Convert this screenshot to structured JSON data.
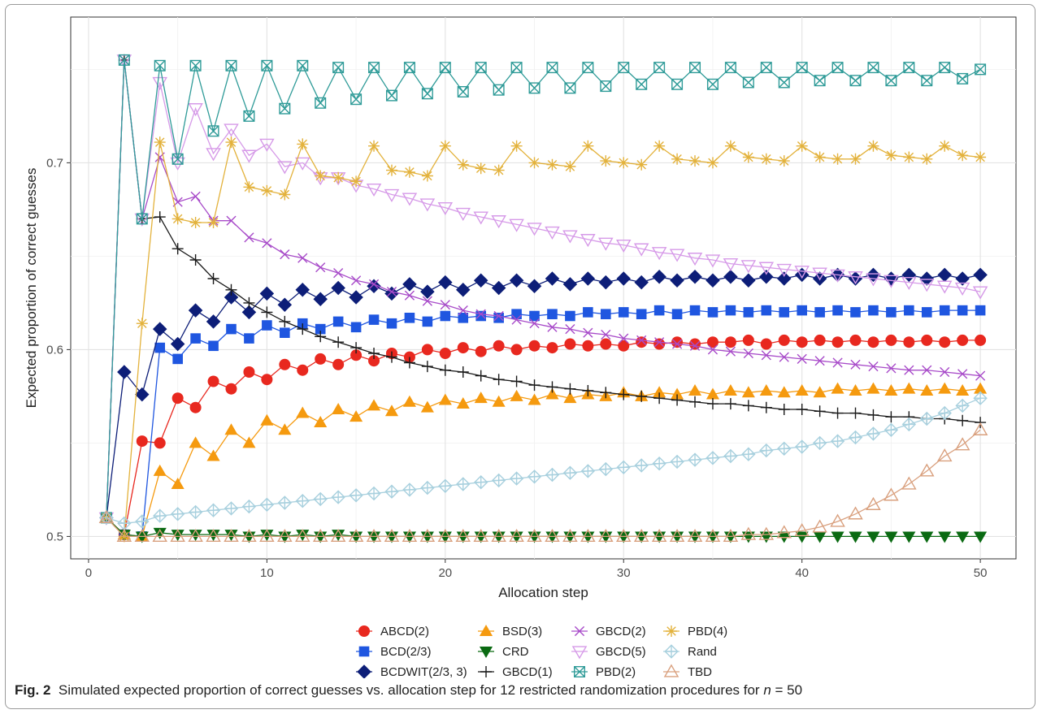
{
  "caption": {
    "label": "Fig. 2",
    "text": "Simulated expected proportion of correct guesses vs. allocation step for 12 restricted randomization procedures for ",
    "var": "n",
    "eq": " = 50"
  },
  "chart_data": {
    "type": "line",
    "xlabel": "Allocation step",
    "ylabel": "Expected proportion of correct guesses",
    "xlim": [
      -1,
      52
    ],
    "ylim": [
      0.488,
      0.778
    ],
    "xticks": [
      0,
      10,
      20,
      30,
      40,
      50
    ],
    "yticks": [
      0.5,
      0.6,
      0.7
    ],
    "ytick_labels": [
      "0.5",
      "0.6",
      "0.7"
    ],
    "grid": true,
    "legend_position": "bottom",
    "x": [
      1,
      2,
      3,
      4,
      5,
      6,
      7,
      8,
      9,
      10,
      11,
      12,
      13,
      14,
      15,
      16,
      17,
      18,
      19,
      20,
      21,
      22,
      23,
      24,
      25,
      26,
      27,
      28,
      29,
      30,
      31,
      32,
      33,
      34,
      35,
      36,
      37,
      38,
      39,
      40,
      41,
      42,
      43,
      44,
      45,
      46,
      47,
      48,
      49,
      50
    ],
    "series": [
      {
        "name": "ABCD(2)",
        "color": "#e8281f",
        "marker": "circle",
        "values": [
          0.51,
          0.501,
          0.551,
          0.55,
          0.574,
          0.569,
          0.583,
          0.579,
          0.588,
          0.584,
          0.592,
          0.589,
          0.595,
          0.592,
          0.597,
          0.594,
          0.598,
          0.596,
          0.6,
          0.598,
          0.601,
          0.599,
          0.602,
          0.6,
          0.602,
          0.601,
          0.603,
          0.602,
          0.603,
          0.602,
          0.604,
          0.603,
          0.604,
          0.603,
          0.604,
          0.604,
          0.605,
          0.603,
          0.605,
          0.604,
          0.605,
          0.604,
          0.605,
          0.604,
          0.605,
          0.604,
          0.605,
          0.604,
          0.605,
          0.605
        ]
      },
      {
        "name": "BCD(2/3)",
        "color": "#1f56e0",
        "marker": "square",
        "values": [
          0.51,
          0.501,
          0.5,
          0.601,
          0.595,
          0.606,
          0.602,
          0.611,
          0.606,
          0.613,
          0.609,
          0.614,
          0.611,
          0.615,
          0.612,
          0.616,
          0.614,
          0.617,
          0.615,
          0.618,
          0.617,
          0.618,
          0.617,
          0.619,
          0.618,
          0.619,
          0.618,
          0.62,
          0.619,
          0.62,
          0.619,
          0.621,
          0.619,
          0.621,
          0.62,
          0.621,
          0.62,
          0.621,
          0.62,
          0.621,
          0.62,
          0.621,
          0.62,
          0.621,
          0.62,
          0.621,
          0.62,
          0.621,
          0.621,
          0.621
        ]
      },
      {
        "name": "BCDWIT(2/3, 3)",
        "color": "#0d1e78",
        "marker": "diamond",
        "values": [
          0.51,
          0.588,
          0.576,
          0.611,
          0.603,
          0.621,
          0.615,
          0.628,
          0.62,
          0.63,
          0.624,
          0.632,
          0.627,
          0.633,
          0.628,
          0.634,
          0.63,
          0.635,
          0.631,
          0.636,
          0.632,
          0.637,
          0.633,
          0.637,
          0.634,
          0.638,
          0.635,
          0.638,
          0.636,
          0.638,
          0.636,
          0.639,
          0.637,
          0.639,
          0.637,
          0.639,
          0.637,
          0.639,
          0.638,
          0.64,
          0.638,
          0.64,
          0.638,
          0.64,
          0.638,
          0.64,
          0.638,
          0.64,
          0.638,
          0.64
        ]
      },
      {
        "name": "BSD(3)",
        "color": "#f59a0f",
        "marker": "triangle-up",
        "values": [
          0.51,
          0.501,
          0.5,
          0.535,
          0.528,
          0.55,
          0.543,
          0.557,
          0.55,
          0.562,
          0.557,
          0.566,
          0.561,
          0.568,
          0.564,
          0.57,
          0.567,
          0.572,
          0.569,
          0.573,
          0.571,
          0.574,
          0.572,
          0.575,
          0.573,
          0.576,
          0.574,
          0.576,
          0.575,
          0.577,
          0.575,
          0.577,
          0.576,
          0.578,
          0.576,
          0.578,
          0.577,
          0.578,
          0.577,
          0.578,
          0.577,
          0.579,
          0.578,
          0.579,
          0.578,
          0.579,
          0.578,
          0.579,
          0.578,
          0.579
        ]
      },
      {
        "name": "CRD",
        "color": "#0a6a12",
        "marker": "triangle-down",
        "values": [
          0.51,
          0.501,
          0.5,
          0.502,
          0.501,
          0.501,
          0.501,
          0.501,
          0.5,
          0.501,
          0.5,
          0.501,
          0.5,
          0.501,
          0.5,
          0.5,
          0.5,
          0.5,
          0.5,
          0.5,
          0.5,
          0.5,
          0.5,
          0.5,
          0.5,
          0.5,
          0.5,
          0.5,
          0.5,
          0.5,
          0.5,
          0.5,
          0.5,
          0.5,
          0.5,
          0.5,
          0.5,
          0.5,
          0.5,
          0.5,
          0.5,
          0.5,
          0.5,
          0.5,
          0.5,
          0.5,
          0.5,
          0.5,
          0.5,
          0.5
        ]
      },
      {
        "name": "GBCD(1)",
        "color": "#1a1a1a",
        "marker": "plus",
        "values": [
          0.51,
          0.755,
          0.67,
          0.671,
          0.654,
          0.648,
          0.638,
          0.632,
          0.625,
          0.62,
          0.615,
          0.611,
          0.607,
          0.604,
          0.601,
          0.598,
          0.596,
          0.593,
          0.591,
          0.589,
          0.588,
          0.586,
          0.584,
          0.583,
          0.581,
          0.58,
          0.579,
          0.578,
          0.577,
          0.576,
          0.575,
          0.574,
          0.573,
          0.572,
          0.571,
          0.571,
          0.57,
          0.569,
          0.568,
          0.568,
          0.567,
          0.566,
          0.566,
          0.565,
          0.564,
          0.564,
          0.563,
          0.563,
          0.562,
          0.561
        ]
      },
      {
        "name": "GBCD(2)",
        "color": "#a84bc9",
        "marker": "x",
        "values": [
          0.51,
          0.755,
          0.67,
          0.703,
          0.679,
          0.682,
          0.669,
          0.669,
          0.66,
          0.657,
          0.651,
          0.649,
          0.644,
          0.641,
          0.637,
          0.635,
          0.631,
          0.629,
          0.626,
          0.624,
          0.621,
          0.619,
          0.618,
          0.616,
          0.614,
          0.612,
          0.611,
          0.609,
          0.608,
          0.606,
          0.605,
          0.604,
          0.603,
          0.602,
          0.6,
          0.599,
          0.598,
          0.597,
          0.596,
          0.595,
          0.594,
          0.593,
          0.592,
          0.591,
          0.59,
          0.589,
          0.589,
          0.588,
          0.587,
          0.586
        ]
      },
      {
        "name": "GBCD(5)",
        "color": "#d69ae8",
        "marker": "triangle-down-open",
        "values": [
          0.51,
          0.755,
          0.67,
          0.743,
          0.7,
          0.729,
          0.705,
          0.718,
          0.704,
          0.71,
          0.698,
          0.7,
          0.692,
          0.692,
          0.688,
          0.686,
          0.683,
          0.681,
          0.678,
          0.676,
          0.673,
          0.671,
          0.669,
          0.667,
          0.665,
          0.663,
          0.661,
          0.659,
          0.657,
          0.656,
          0.654,
          0.652,
          0.651,
          0.649,
          0.648,
          0.646,
          0.645,
          0.644,
          0.643,
          0.642,
          0.641,
          0.64,
          0.639,
          0.638,
          0.637,
          0.636,
          0.635,
          0.634,
          0.633,
          0.631
        ]
      },
      {
        "name": "PBD(2)",
        "color": "#2f9b98",
        "marker": "square-x",
        "values": [
          0.51,
          0.755,
          0.67,
          0.752,
          0.702,
          0.752,
          0.717,
          0.752,
          0.725,
          0.752,
          0.729,
          0.752,
          0.732,
          0.751,
          0.734,
          0.751,
          0.736,
          0.751,
          0.737,
          0.751,
          0.738,
          0.751,
          0.739,
          0.751,
          0.74,
          0.751,
          0.74,
          0.751,
          0.741,
          0.751,
          0.742,
          0.751,
          0.742,
          0.751,
          0.742,
          0.751,
          0.743,
          0.751,
          0.743,
          0.751,
          0.744,
          0.751,
          0.744,
          0.751,
          0.744,
          0.751,
          0.744,
          0.751,
          0.745,
          0.75
        ]
      },
      {
        "name": "PBD(4)",
        "color": "#e3b23c",
        "marker": "asterisk",
        "values": [
          0.51,
          0.5,
          0.614,
          0.711,
          0.67,
          0.668,
          0.668,
          0.711,
          0.687,
          0.685,
          0.683,
          0.71,
          0.693,
          0.692,
          0.69,
          0.709,
          0.696,
          0.695,
          0.693,
          0.709,
          0.699,
          0.697,
          0.696,
          0.709,
          0.7,
          0.699,
          0.698,
          0.709,
          0.701,
          0.7,
          0.699,
          0.709,
          0.702,
          0.701,
          0.7,
          0.709,
          0.703,
          0.702,
          0.701,
          0.709,
          0.703,
          0.702,
          0.702,
          0.709,
          0.704,
          0.703,
          0.702,
          0.709,
          0.704,
          0.703
        ]
      },
      {
        "name": "Rand",
        "color": "#a8d0de",
        "marker": "diamond-plus",
        "values": [
          0.51,
          0.507,
          0.508,
          0.511,
          0.512,
          0.513,
          0.514,
          0.515,
          0.516,
          0.517,
          0.518,
          0.519,
          0.52,
          0.521,
          0.522,
          0.523,
          0.524,
          0.525,
          0.526,
          0.527,
          0.528,
          0.529,
          0.53,
          0.531,
          0.532,
          0.533,
          0.534,
          0.535,
          0.536,
          0.537,
          0.538,
          0.539,
          0.54,
          0.541,
          0.542,
          0.543,
          0.544,
          0.546,
          0.547,
          0.548,
          0.55,
          0.551,
          0.553,
          0.555,
          0.557,
          0.56,
          0.563,
          0.566,
          0.57,
          0.574
        ]
      },
      {
        "name": "TBD",
        "color": "#d9a07e",
        "marker": "triangle-up-open",
        "values": [
          0.51,
          0.5,
          0.5,
          0.5,
          0.5,
          0.5,
          0.5,
          0.5,
          0.5,
          0.5,
          0.5,
          0.5,
          0.5,
          0.5,
          0.5,
          0.5,
          0.5,
          0.5,
          0.5,
          0.5,
          0.5,
          0.5,
          0.5,
          0.5,
          0.5,
          0.5,
          0.5,
          0.5,
          0.5,
          0.5,
          0.5,
          0.5,
          0.5,
          0.5,
          0.5,
          0.5,
          0.501,
          0.501,
          0.502,
          0.503,
          0.505,
          0.508,
          0.512,
          0.517,
          0.522,
          0.528,
          0.535,
          0.543,
          0.549,
          0.557
        ]
      }
    ],
    "legend_order": [
      0,
      3,
      6,
      9,
      1,
      4,
      7,
      10,
      2,
      5,
      8,
      11
    ]
  }
}
